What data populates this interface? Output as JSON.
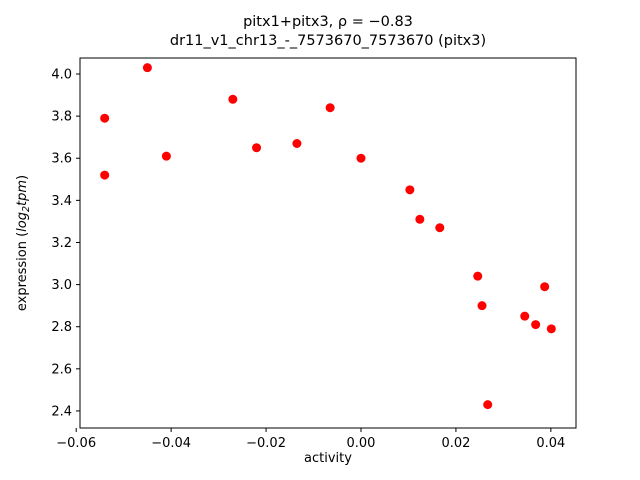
{
  "figure": {
    "title_line1": "pitx1+pitx3, ρ = −0.83",
    "title_line2": "dr11_v1_chr13_-_7573670_7573670 (pitx3)",
    "xlabel": "activity",
    "ylabel_prefix": "expression (",
    "ylabel_math": "log",
    "ylabel_sub": "2",
    "ylabel_tail": "tpm",
    "ylabel_suffix": ")"
  },
  "chart_data": {
    "type": "scatter",
    "title": "pitx1+pitx3, ρ = −0.83\ndr11_v1_chr13_-_7573670_7573670 (pitx3)",
    "xlabel": "activity",
    "ylabel": "expression (log2 tpm)",
    "marker_color": "#ff0000",
    "marker_radius": 4.5,
    "frame_color": "#000000",
    "xlim": [
      -0.0592,
      0.0453
    ],
    "ylim": [
      2.319,
      4.076
    ],
    "grid": false,
    "legend": "none",
    "x_ticks": [
      -0.06,
      -0.04,
      -0.02,
      0.0,
      0.02,
      0.04
    ],
    "x_tick_labels": [
      "−0.06",
      "−0.04",
      "−0.02",
      "0.00",
      "0.02",
      "0.04"
    ],
    "y_ticks": [
      2.4,
      2.6,
      2.8,
      3.0,
      3.2,
      3.4,
      3.6,
      3.8,
      4.0
    ],
    "y_tick_labels": [
      "2.4",
      "2.6",
      "2.8",
      "3.0",
      "3.2",
      "3.4",
      "3.6",
      "3.8",
      "4.0"
    ],
    "points": [
      [
        -0.054,
        3.79
      ],
      [
        -0.054,
        3.52
      ],
      [
        -0.045,
        4.03
      ],
      [
        -0.041,
        3.61
      ],
      [
        -0.027,
        3.88
      ],
      [
        -0.022,
        3.65
      ],
      [
        -0.0135,
        3.67
      ],
      [
        -0.0065,
        3.84
      ],
      [
        0.0,
        3.6
      ],
      [
        0.0103,
        3.45
      ],
      [
        0.0124,
        3.31
      ],
      [
        0.0166,
        3.27
      ],
      [
        0.0246,
        3.04
      ],
      [
        0.0255,
        2.9
      ],
      [
        0.0267,
        2.43
      ],
      [
        0.0345,
        2.85
      ],
      [
        0.0368,
        2.81
      ],
      [
        0.0387,
        2.99
      ],
      [
        0.0401,
        2.79
      ]
    ]
  }
}
